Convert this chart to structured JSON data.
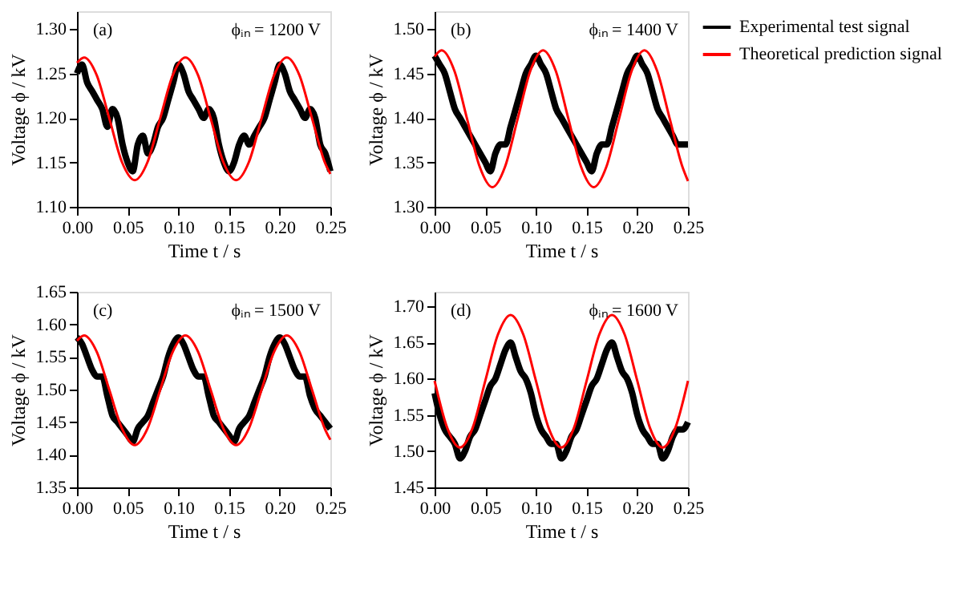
{
  "chart_data": [
    {
      "type": "line",
      "xlabel": "Time t / s",
      "ylabel": "Voltage ϕ / kV",
      "annotations": [
        "(a)",
        "ϕᵢₙ = 1200 V"
      ],
      "xlim": [
        0,
        0.25
      ],
      "xticks": [
        {
          "value": 0,
          "label": "0.00"
        },
        0.05,
        {
          "value": 0.1,
          "label": "0.10"
        },
        0.15,
        {
          "value": 0.2,
          "label": "0.20"
        },
        0.25
      ],
      "ylim": [
        1.1,
        1.32
      ],
      "yticks": [
        {
          "value": 1.1,
          "label": "1.10"
        },
        1.15,
        {
          "value": 1.2,
          "label": "1.20"
        },
        1.25,
        {
          "value": 1.3,
          "label": "1.30"
        }
      ],
      "grid": false,
      "legend": false,
      "series": [
        {
          "color": "#000000",
          "x": [
            0,
            0.005,
            0.01,
            0.015,
            0.02,
            0.025,
            0.03,
            0.035,
            0.04,
            0.045,
            0.05,
            0.055,
            0.06,
            0.065,
            0.07,
            0.075,
            0.08,
            0.085,
            0.09,
            0.095,
            0.1,
            0.105,
            0.11,
            0.115,
            0.12,
            0.125,
            0.13,
            0.135,
            0.14,
            0.145,
            0.15,
            0.155,
            0.16,
            0.165,
            0.17,
            0.175,
            0.18,
            0.185,
            0.19,
            0.195,
            0.2,
            0.205,
            0.21,
            0.215,
            0.22,
            0.225,
            0.23,
            0.235,
            0.24,
            0.245,
            0.25
          ],
          "values": [
            1.25,
            1.26,
            1.24,
            1.23,
            1.22,
            1.21,
            1.19,
            1.21,
            1.2,
            1.17,
            1.15,
            1.14,
            1.17,
            1.18,
            1.16,
            1.17,
            1.19,
            1.2,
            1.22,
            1.24,
            1.26,
            1.25,
            1.23,
            1.22,
            1.21,
            1.2,
            1.21,
            1.2,
            1.17,
            1.15,
            1.14,
            1.15,
            1.17,
            1.18,
            1.17,
            1.18,
            1.19,
            1.2,
            1.22,
            1.24,
            1.26,
            1.25,
            1.23,
            1.22,
            1.21,
            1.2,
            1.21,
            1.2,
            1.17,
            1.16,
            1.14
          ]
        },
        {
          "color": "#ff0000",
          "x": [
            0,
            0.007,
            0.0195,
            0.032,
            0.0445,
            0.057,
            0.0695,
            0.082,
            0.0945,
            0.107,
            0.1195,
            0.132,
            0.1445,
            0.157,
            0.1695,
            0.182,
            0.1945,
            0.207,
            0.2195,
            0.232,
            0.2445,
            0.25
          ],
          "values": [
            1.262,
            1.268,
            1.248,
            1.199,
            1.15,
            1.13,
            1.15,
            1.199,
            1.248,
            1.268,
            1.248,
            1.199,
            1.15,
            1.13,
            1.15,
            1.199,
            1.248,
            1.268,
            1.248,
            1.199,
            1.15,
            1.137
          ]
        }
      ]
    },
    {
      "type": "line",
      "xlabel": "Time t / s",
      "ylabel": "Voltage ϕ / kV",
      "annotations": [
        "(b)",
        "ϕᵢₙ = 1400 V"
      ],
      "xlim": [
        0,
        0.25
      ],
      "xticks": [
        {
          "value": 0,
          "label": "0.00"
        },
        0.05,
        {
          "value": 0.1,
          "label": "0.10"
        },
        0.15,
        {
          "value": 0.2,
          "label": "0.20"
        },
        0.25
      ],
      "ylim": [
        1.3,
        1.52
      ],
      "yticks": [
        {
          "value": 1.3,
          "label": "1.30"
        },
        1.35,
        {
          "value": 1.4,
          "label": "1.40"
        },
        1.45,
        {
          "value": 1.5,
          "label": "1.50"
        }
      ],
      "grid": false,
      "legend": "right",
      "series": [
        {
          "name": "Experimental test signal",
          "color": "#000000",
          "x": [
            0,
            0.005,
            0.01,
            0.015,
            0.02,
            0.025,
            0.03,
            0.035,
            0.04,
            0.045,
            0.05,
            0.055,
            0.06,
            0.065,
            0.07,
            0.075,
            0.08,
            0.085,
            0.09,
            0.095,
            0.1,
            0.105,
            0.11,
            0.115,
            0.12,
            0.125,
            0.13,
            0.135,
            0.14,
            0.145,
            0.15,
            0.155,
            0.16,
            0.165,
            0.17,
            0.175,
            0.18,
            0.185,
            0.19,
            0.195,
            0.2,
            0.205,
            0.21,
            0.215,
            0.22,
            0.225,
            0.23,
            0.235,
            0.24,
            0.245,
            0.25
          ],
          "values": [
            1.47,
            1.46,
            1.45,
            1.43,
            1.41,
            1.4,
            1.39,
            1.38,
            1.37,
            1.36,
            1.35,
            1.34,
            1.36,
            1.37,
            1.37,
            1.39,
            1.41,
            1.43,
            1.45,
            1.46,
            1.47,
            1.46,
            1.45,
            1.43,
            1.41,
            1.4,
            1.39,
            1.38,
            1.37,
            1.36,
            1.35,
            1.34,
            1.36,
            1.37,
            1.37,
            1.39,
            1.41,
            1.43,
            1.45,
            1.46,
            1.47,
            1.46,
            1.45,
            1.43,
            1.41,
            1.4,
            1.39,
            1.38,
            1.37,
            1.37,
            1.37
          ]
        },
        {
          "name": "Theoretical prediction signal",
          "color": "#ff0000",
          "x": [
            0,
            0.007,
            0.0195,
            0.032,
            0.0445,
            0.057,
            0.0695,
            0.082,
            0.0945,
            0.107,
            0.1195,
            0.132,
            0.1445,
            0.157,
            0.1695,
            0.182,
            0.1945,
            0.207,
            0.2195,
            0.232,
            0.2445,
            0.25
          ],
          "values": [
            1.469,
            1.476,
            1.453,
            1.399,
            1.345,
            1.322,
            1.345,
            1.399,
            1.453,
            1.476,
            1.453,
            1.399,
            1.345,
            1.322,
            1.345,
            1.399,
            1.453,
            1.476,
            1.453,
            1.399,
            1.345,
            1.329
          ]
        }
      ]
    },
    {
      "type": "line",
      "xlabel": "Time t / s",
      "ylabel": "Voltage ϕ / kV",
      "annotations": [
        "(c)",
        "ϕᵢₙ = 1500 V"
      ],
      "xlim": [
        0,
        0.25
      ],
      "xticks": [
        {
          "value": 0,
          "label": "0.00"
        },
        0.05,
        {
          "value": 0.1,
          "label": "0.10"
        },
        0.15,
        {
          "value": 0.2,
          "label": "0.20"
        },
        0.25
      ],
      "ylim": [
        1.35,
        1.65
      ],
      "yticks": [
        1.35,
        {
          "value": 1.4,
          "label": "1.40"
        },
        1.45,
        {
          "value": 1.5,
          "label": "1.50"
        },
        1.55,
        {
          "value": 1.6,
          "label": "1.60"
        },
        1.65
      ],
      "grid": false,
      "legend": false,
      "series": [
        {
          "color": "#000000",
          "x": [
            0,
            0.005,
            0.01,
            0.015,
            0.02,
            0.025,
            0.03,
            0.035,
            0.04,
            0.045,
            0.05,
            0.055,
            0.06,
            0.065,
            0.07,
            0.075,
            0.08,
            0.085,
            0.09,
            0.095,
            0.1,
            0.105,
            0.11,
            0.115,
            0.12,
            0.125,
            0.13,
            0.135,
            0.14,
            0.145,
            0.15,
            0.155,
            0.16,
            0.165,
            0.17,
            0.175,
            0.18,
            0.185,
            0.19,
            0.195,
            0.2,
            0.205,
            0.21,
            0.215,
            0.22,
            0.225,
            0.23,
            0.235,
            0.24,
            0.245,
            0.25
          ],
          "values": [
            1.58,
            1.57,
            1.55,
            1.53,
            1.52,
            1.52,
            1.49,
            1.46,
            1.45,
            1.44,
            1.43,
            1.42,
            1.44,
            1.45,
            1.46,
            1.48,
            1.5,
            1.52,
            1.55,
            1.57,
            1.58,
            1.57,
            1.55,
            1.53,
            1.52,
            1.52,
            1.49,
            1.46,
            1.45,
            1.44,
            1.43,
            1.42,
            1.44,
            1.45,
            1.46,
            1.48,
            1.5,
            1.52,
            1.55,
            1.57,
            1.58,
            1.57,
            1.55,
            1.53,
            1.52,
            1.52,
            1.49,
            1.47,
            1.46,
            1.45,
            1.44
          ]
        },
        {
          "color": "#ff0000",
          "x": [
            0,
            0.007,
            0.0195,
            0.032,
            0.0445,
            0.057,
            0.0695,
            0.082,
            0.0945,
            0.107,
            0.1195,
            0.132,
            0.1445,
            0.157,
            0.1695,
            0.182,
            0.1945,
            0.207,
            0.2195,
            0.232,
            0.2445,
            0.25
          ],
          "values": [
            1.575,
            1.583,
            1.558,
            1.499,
            1.44,
            1.415,
            1.44,
            1.499,
            1.558,
            1.583,
            1.558,
            1.499,
            1.44,
            1.415,
            1.44,
            1.499,
            1.558,
            1.583,
            1.558,
            1.499,
            1.44,
            1.423
          ]
        }
      ]
    },
    {
      "type": "line",
      "xlabel": "Time t / s",
      "ylabel": "Voltage ϕ / kV",
      "annotations": [
        "(d)",
        "ϕᵢₙ = 1600 V"
      ],
      "xlim": [
        0,
        0.25
      ],
      "xticks": [
        {
          "value": 0,
          "label": "0.00"
        },
        0.05,
        {
          "value": 0.1,
          "label": "0.10"
        },
        0.15,
        {
          "value": 0.2,
          "label": "0.20"
        },
        0.25
      ],
      "ylim": [
        1.45,
        1.72
      ],
      "yticks": [
        1.45,
        {
          "value": 1.5,
          "label": "1.50"
        },
        1.55,
        {
          "value": 1.6,
          "label": "1.60"
        },
        1.65,
        {
          "value": 1.7,
          "label": "1.70"
        }
      ],
      "grid": false,
      "legend": false,
      "series": [
        {
          "color": "#000000",
          "x": [
            0,
            0.005,
            0.01,
            0.015,
            0.02,
            0.025,
            0.03,
            0.035,
            0.04,
            0.045,
            0.05,
            0.055,
            0.06,
            0.065,
            0.07,
            0.075,
            0.08,
            0.085,
            0.09,
            0.095,
            0.1,
            0.105,
            0.11,
            0.115,
            0.12,
            0.125,
            0.13,
            0.135,
            0.14,
            0.145,
            0.15,
            0.155,
            0.16,
            0.165,
            0.17,
            0.175,
            0.18,
            0.185,
            0.19,
            0.195,
            0.2,
            0.205,
            0.21,
            0.215,
            0.22,
            0.225,
            0.23,
            0.235,
            0.24,
            0.245,
            0.25
          ],
          "values": [
            1.58,
            1.55,
            1.53,
            1.52,
            1.51,
            1.49,
            1.5,
            1.52,
            1.53,
            1.55,
            1.57,
            1.59,
            1.6,
            1.62,
            1.64,
            1.65,
            1.63,
            1.61,
            1.6,
            1.58,
            1.55,
            1.53,
            1.52,
            1.51,
            1.51,
            1.49,
            1.5,
            1.52,
            1.53,
            1.55,
            1.57,
            1.59,
            1.6,
            1.62,
            1.64,
            1.65,
            1.63,
            1.61,
            1.6,
            1.58,
            1.55,
            1.53,
            1.52,
            1.51,
            1.51,
            1.49,
            1.5,
            1.52,
            1.53,
            1.53,
            1.54
          ]
        },
        {
          "color": "#ff0000",
          "x": [
            0,
            0.0125,
            0.025,
            0.0375,
            0.05,
            0.0625,
            0.075,
            0.0875,
            0.1,
            0.1125,
            0.125,
            0.1375,
            0.15,
            0.1625,
            0.175,
            0.1875,
            0.2,
            0.2125,
            0.225,
            0.2375,
            0.25
          ],
          "values": [
            1.597,
            1.532,
            1.505,
            1.532,
            1.597,
            1.661,
            1.688,
            1.661,
            1.597,
            1.532,
            1.505,
            1.532,
            1.597,
            1.661,
            1.688,
            1.661,
            1.597,
            1.532,
            1.505,
            1.532,
            1.597
          ]
        }
      ]
    }
  ]
}
